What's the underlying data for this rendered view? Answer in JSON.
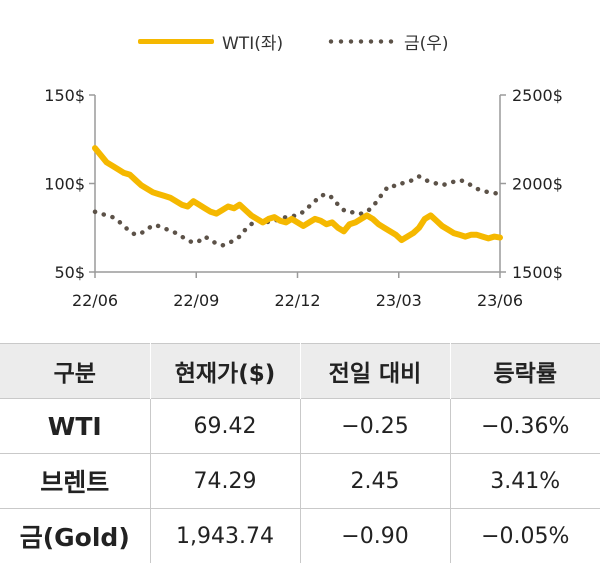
{
  "chart_data": {
    "type": "line",
    "x_ticks": [
      "22/06",
      "22/09",
      "22/12",
      "23/03",
      "23/06"
    ],
    "y_left_ticks": [
      "150$",
      "100$",
      "50$"
    ],
    "y_right_ticks": [
      "2500$",
      "2000$",
      "1500$"
    ],
    "ylim_left": [
      50,
      150
    ],
    "ylim_right": [
      1500,
      2500
    ],
    "series": [
      {
        "name": "WTI(좌)",
        "axis": "left",
        "color": "#f5b800",
        "values": [
          120,
          116,
          112,
          110,
          108,
          106,
          105,
          102,
          99,
          97,
          95,
          94,
          93,
          92,
          90,
          88,
          87,
          90,
          88,
          86,
          84,
          83,
          85,
          87,
          86,
          88,
          85,
          82,
          80,
          78,
          80,
          81,
          79,
          78,
          80,
          78,
          76,
          78,
          80,
          79,
          77,
          78,
          75,
          73,
          77,
          78,
          80,
          82,
          80,
          77,
          75,
          73,
          71,
          68,
          70,
          72,
          75,
          80,
          82,
          79,
          76,
          74,
          72,
          71,
          70,
          71,
          71,
          70,
          69,
          70,
          69.42
        ]
      },
      {
        "name": "금(우)",
        "axis": "right",
        "color": "#5c5248",
        "values": [
          1840,
          1830,
          1820,
          1810,
          1790,
          1760,
          1730,
          1710,
          1720,
          1740,
          1765,
          1760,
          1745,
          1735,
          1720,
          1700,
          1680,
          1665,
          1675,
          1700,
          1680,
          1660,
          1650,
          1660,
          1680,
          1700,
          1740,
          1770,
          1790,
          1800,
          1780,
          1790,
          1800,
          1810,
          1815,
          1820,
          1840,
          1870,
          1900,
          1930,
          1940,
          1920,
          1880,
          1850,
          1835,
          1840,
          1830,
          1840,
          1870,
          1910,
          1960,
          1990,
          1985,
          2000,
          2010,
          2020,
          2040,
          2020,
          2010,
          2000,
          1990,
          2000,
          2010,
          2020,
          2010,
          1990,
          1970,
          1960,
          1950,
          1945,
          1943.74
        ]
      }
    ]
  },
  "legend": {
    "wti": "WTI(좌)",
    "gold": "금(우)"
  },
  "table": {
    "headers": [
      "구분",
      "현재가($)",
      "전일 대비",
      "등락률"
    ],
    "rows": [
      [
        "WTI",
        "69.42",
        "−0.25",
        "−0.36%"
      ],
      [
        "브렌트",
        "74.29",
        "2.45",
        "3.41%"
      ],
      [
        "금(Gold)",
        "1,943.74",
        "−0.90",
        "−0.05%"
      ]
    ]
  }
}
